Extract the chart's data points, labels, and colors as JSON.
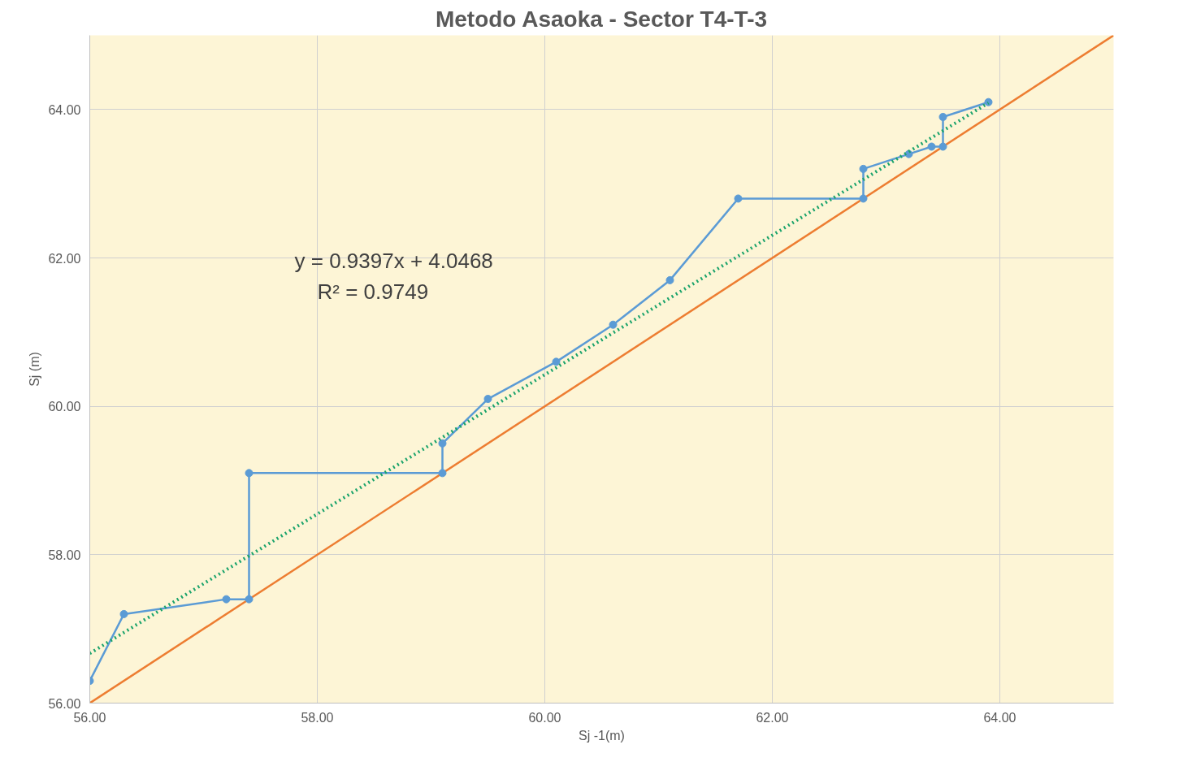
{
  "chart_data": {
    "type": "line",
    "title": "Metodo Asaoka - Sector T4-T-3",
    "xlabel": "Sj -1(m)",
    "ylabel": "Sj (m)",
    "xlim": [
      56,
      65
    ],
    "ylim": [
      56,
      65
    ],
    "xticks": [
      {
        "value": 56,
        "label": "56.00"
      },
      {
        "value": 58,
        "label": "58.00"
      },
      {
        "value": 60,
        "label": "60.00"
      },
      {
        "value": 62,
        "label": "62.00"
      },
      {
        "value": 64,
        "label": "64.00"
      }
    ],
    "yticks": [
      {
        "value": 56,
        "label": "56.00"
      },
      {
        "value": 58,
        "label": "58.00"
      },
      {
        "value": 60,
        "label": "60.00"
      },
      {
        "value": 62,
        "label": "62.00"
      },
      {
        "value": 64,
        "label": "64.00"
      }
    ],
    "grid": true,
    "annotations": [
      "y = 0.9397x + 4.0468",
      "R² = 0.9749"
    ],
    "series": [
      {
        "type": "line",
        "color": "#ed7d31",
        "marker": "none",
        "line_style": "solid",
        "x": [
          56,
          65
        ],
        "values": [
          56,
          65
        ]
      },
      {
        "type": "line",
        "color": "#5b9bd5",
        "marker": "circle",
        "line_style": "solid",
        "x": [
          56.0,
          56.3,
          57.2,
          57.4,
          57.4,
          59.1,
          59.1,
          59.5,
          60.1,
          60.6,
          61.1,
          61.7,
          62.8,
          62.8,
          63.2,
          63.4,
          63.5,
          63.5,
          63.9
        ],
        "values": [
          56.3,
          57.2,
          57.4,
          57.4,
          59.1,
          59.1,
          59.5,
          60.1,
          60.6,
          61.1,
          61.7,
          62.8,
          62.8,
          63.2,
          63.4,
          63.5,
          63.5,
          63.9,
          64.1
        ]
      },
      {
        "type": "line",
        "color": "#1aa36b",
        "marker": "none",
        "line_style": "dotted",
        "x": [
          56,
          63.9
        ],
        "values": [
          56.67,
          64.09
        ]
      }
    ]
  }
}
